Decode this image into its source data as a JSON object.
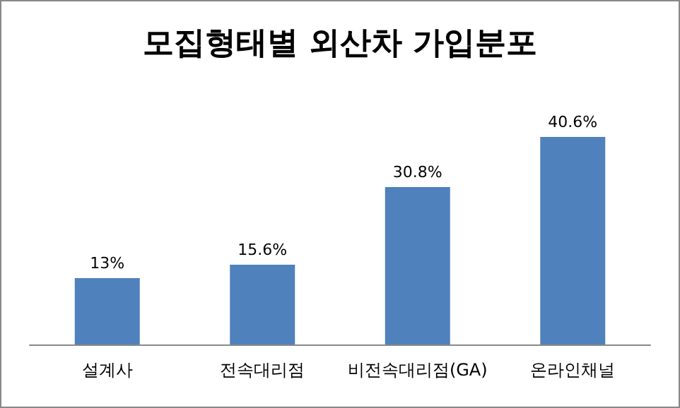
{
  "chart_data": {
    "type": "bar",
    "title": "모집형태별 외산차 가입분포",
    "categories": [
      "설계사",
      "전속대리점",
      "비전속대리점(GA)",
      "온라인채널"
    ],
    "values": [
      13,
      15.6,
      30.8,
      40.6
    ],
    "value_labels": [
      "13%",
      "15.6%",
      "30.8%",
      "40.6%"
    ],
    "color": "#4f81bd"
  }
}
